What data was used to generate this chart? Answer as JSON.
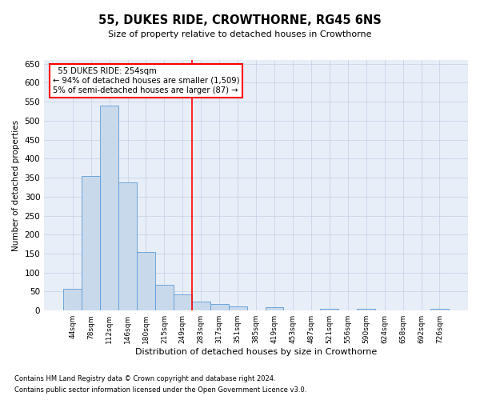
{
  "title": "55, DUKES RIDE, CROWTHORNE, RG45 6NS",
  "subtitle": "Size of property relative to detached houses in Crowthorne",
  "xlabel": "Distribution of detached houses by size in Crowthorne",
  "ylabel": "Number of detached properties",
  "footnote1": "Contains HM Land Registry data © Crown copyright and database right 2024.",
  "footnote2": "Contains public sector information licensed under the Open Government Licence v3.0.",
  "bar_labels": [
    "44sqm",
    "78sqm",
    "112sqm",
    "146sqm",
    "180sqm",
    "215sqm",
    "249sqm",
    "283sqm",
    "317sqm",
    "351sqm",
    "385sqm",
    "419sqm",
    "453sqm",
    "487sqm",
    "521sqm",
    "556sqm",
    "590sqm",
    "624sqm",
    "658sqm",
    "692sqm",
    "726sqm"
  ],
  "bar_values": [
    57,
    354,
    540,
    337,
    155,
    68,
    42,
    24,
    17,
    10,
    0,
    9,
    0,
    0,
    4,
    0,
    4,
    0,
    0,
    0,
    4
  ],
  "bar_color": "#c9d9ec",
  "bar_edge_color": "#5b9bd5",
  "ylim": [
    0,
    660
  ],
  "yticks": [
    0,
    50,
    100,
    150,
    200,
    250,
    300,
    350,
    400,
    450,
    500,
    550,
    600,
    650
  ],
  "vline_x": 6.5,
  "annotation_text_line1": "  55 DUKES RIDE: 254sqm        ",
  "annotation_text_line2": "← 94% of detached houses are smaller (1,509)",
  "annotation_text_line3": "5% of semi-detached houses are larger (87) →",
  "background_color": "#ffffff",
  "plot_bg_color": "#e8eef7",
  "grid_color": "#c8d4e8",
  "ax_facecolor": "#e8eef7"
}
